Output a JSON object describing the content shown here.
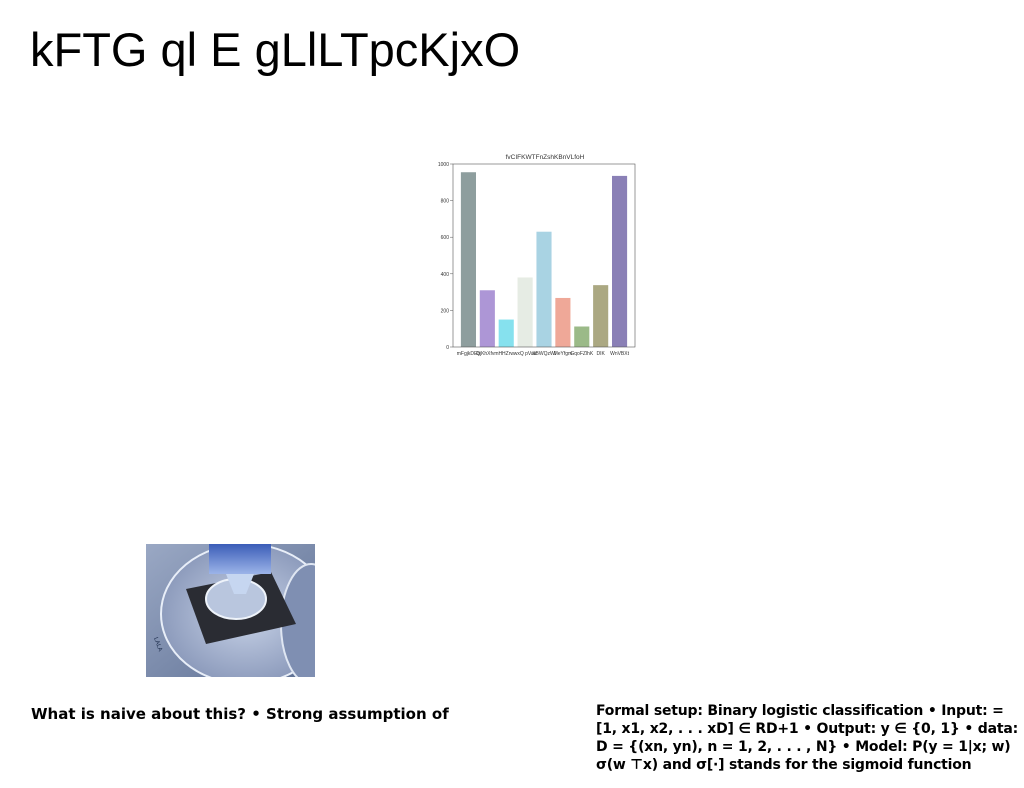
{
  "slide": {
    "title": "kFTG ql E gLlLTpcKjxO",
    "left_text": "What is naive about this? • Strong assumption of",
    "right_text": "Formal setup: Binary logistic classification • Input: = [1, x1, x2, . . . xD] ∈ RD+1 • Output: y ∈ {0, 1} • data: D = {(xn, yn), n = 1, 2, . . . , N} • Model: P(y = 1|x; w) σ(w ⊤x) and σ[·] stands for the sigmoid function"
  },
  "chart_data": {
    "type": "bar",
    "title": "fvCIFKWTFnZshKBnVLfoH",
    "categories": [
      "mFgjkDEb",
      "QjKhXfvm",
      "HHZrw",
      "wxQ pVaa",
      "XBWQzWl",
      "MeYfgm",
      "GqoFZlhK",
      "DIK",
      "WnVBXt"
    ],
    "values": [
      955,
      310,
      150,
      380,
      630,
      268,
      112,
      338,
      935
    ],
    "colors": [
      "#8e9e9e",
      "#ad96d6",
      "#86e1ee",
      "#e6ece4",
      "#a9d3e3",
      "#efa898",
      "#9bba88",
      "#aba882",
      "#8a80b6"
    ],
    "ylim": [
      0,
      1000
    ],
    "yticks": [
      0,
      200,
      400,
      600,
      800,
      1000
    ],
    "grid": false
  }
}
